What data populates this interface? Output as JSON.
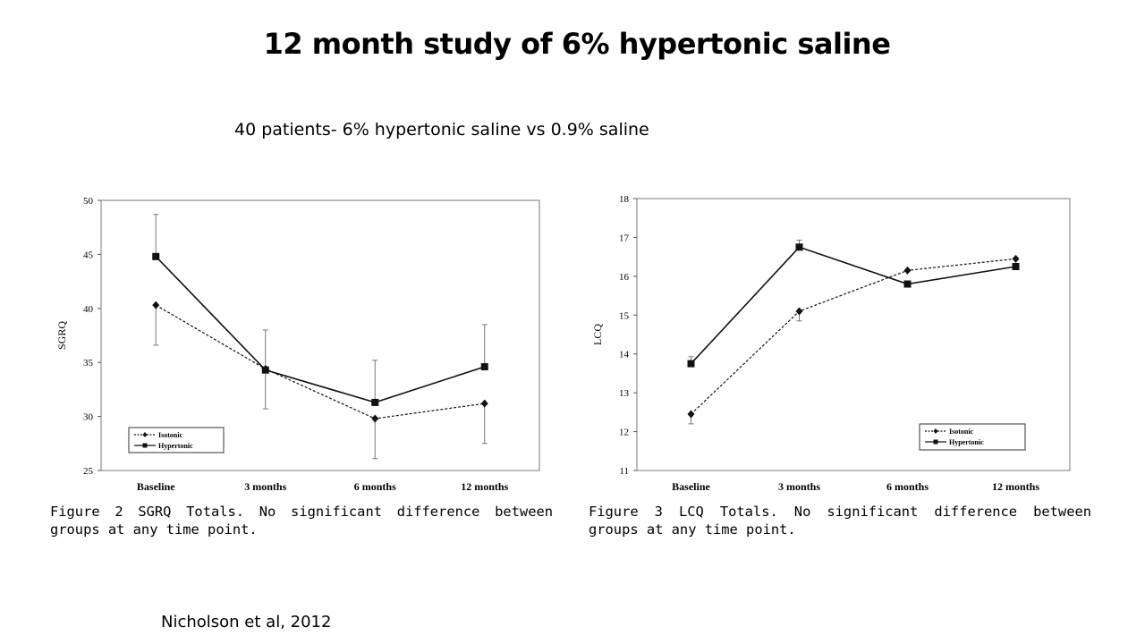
{
  "slide": {
    "title": "12 month study of 6% hypertonic saline",
    "subtitle": "40 patients-  6% hypertonic saline vs 0.9% saline",
    "citation": "Nicholson et al, 2012"
  },
  "captions": [
    "Figure 2   SGRQ Totals. No significant difference between groups at any time point.",
    "Figure 3   LCQ Totals. No significant difference between groups at any time point."
  ],
  "chart_data": [
    {
      "type": "line",
      "title": "",
      "xlabel": "",
      "ylabel": "SGRQ",
      "categories": [
        "Baseline",
        "3 months",
        "6 months",
        "12 months"
      ],
      "ylim": [
        25,
        50
      ],
      "yticks": [
        25,
        30,
        35,
        40,
        45,
        50
      ],
      "grid": false,
      "legend": "bottom-left",
      "series": [
        {
          "name": "Isotonic",
          "values": [
            40.3,
            34.4,
            29.8,
            31.2
          ],
          "error": [
            3.7,
            3.7,
            3.7,
            3.7
          ],
          "line": "dashed",
          "marker": "diamond"
        },
        {
          "name": "Hypertonic",
          "values": [
            44.8,
            34.3,
            31.3,
            34.6
          ],
          "error": [
            3.9,
            3.7,
            3.9,
            3.9
          ],
          "line": "solid",
          "marker": "square"
        }
      ]
    },
    {
      "type": "line",
      "title": "",
      "xlabel": "",
      "ylabel": "LCQ",
      "categories": [
        "Baseline",
        "3 months",
        "6 months",
        "12 months"
      ],
      "ylim": [
        11,
        18
      ],
      "yticks": [
        11,
        12,
        13,
        14,
        15,
        16,
        17,
        18
      ],
      "grid": false,
      "legend": "bottom-right",
      "series": [
        {
          "name": "Isotonic",
          "values": [
            12.45,
            15.1,
            16.15,
            16.45
          ],
          "error": [
            0.25,
            0.25,
            0,
            0
          ],
          "line": "dashed",
          "marker": "diamond"
        },
        {
          "name": "Hypertonic",
          "values": [
            13.75,
            16.75,
            15.8,
            16.25
          ],
          "error": [
            0.18,
            0.18,
            0,
            0
          ],
          "line": "solid",
          "marker": "square"
        }
      ]
    }
  ]
}
